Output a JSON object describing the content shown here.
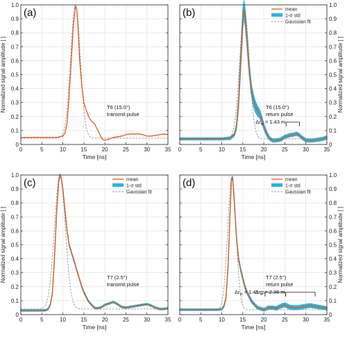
{
  "colors": {
    "mean": "#e05a1e",
    "std": "#2bb5e0",
    "gauss": "#8c8c8c",
    "grid": "#dcdcdc",
    "axis": "#222222"
  },
  "chart_data": [
    {
      "panel": "(a)",
      "type": "line",
      "side": "left",
      "annotation": [
        "T6 (15.0°)",
        "transmit pulse"
      ],
      "xlabel": "Time [ns]",
      "ylabel": "Normalized signal amplitude [ ]",
      "xlim": [
        0,
        35
      ],
      "ylim": [
        0,
        1
      ],
      "xticks": [
        "0",
        "5",
        "10",
        "15",
        "20",
        "25",
        "30",
        "35"
      ],
      "yticks": [
        "0",
        "0.1",
        "0.2",
        "0.3",
        "0.4",
        "0.5",
        "0.6",
        "0.7",
        "0.8",
        "0.9",
        "1.0"
      ],
      "grid": true,
      "legend": null,
      "measurements": [],
      "series": [
        {
          "name": "mean",
          "kind": "mean",
          "x": [
            0,
            5,
            8,
            9,
            10,
            10.5,
            11,
            11.5,
            12,
            12.5,
            13,
            13.3,
            13.6,
            14,
            14.5,
            15,
            15.5,
            16,
            16.5,
            17,
            17.5,
            18,
            18.5,
            19,
            19.5,
            20,
            20.5,
            21,
            22,
            23,
            24,
            25,
            26,
            27,
            28,
            29,
            30,
            31,
            32,
            33,
            34,
            35
          ],
          "y": [
            0.05,
            0.05,
            0.05,
            0.053,
            0.06,
            0.08,
            0.15,
            0.35,
            0.6,
            0.85,
            0.99,
            0.97,
            0.85,
            0.6,
            0.42,
            0.3,
            0.25,
            0.21,
            0.18,
            0.16,
            0.15,
            0.12,
            0.09,
            0.055,
            0.035,
            0.03,
            0.033,
            0.04,
            0.05,
            0.055,
            0.06,
            0.07,
            0.075,
            0.075,
            0.075,
            0.07,
            0.06,
            0.06,
            0.065,
            0.07,
            0.075,
            0.07
          ]
        },
        {
          "name": "1-σ std",
          "kind": "std",
          "x": [],
          "y": []
        },
        {
          "name": "Gaussian fit",
          "kind": "gauss",
          "center": 13,
          "sigma": 1.15,
          "baseline": 0.045,
          "amplitude": 0.955
        }
      ]
    },
    {
      "panel": "(b)",
      "type": "line",
      "side": "right",
      "annotation": [
        "T6 (15.0°)",
        "return pulse"
      ],
      "xlabel": "Time [ns]",
      "ylabel": "Normalized signal amplitude [ ]",
      "xlim": [
        0,
        35
      ],
      "ylim": [
        0,
        1
      ],
      "xticks": [
        "0",
        "5",
        "10",
        "15",
        "20",
        "25",
        "30",
        "35"
      ],
      "yticks": [
        "0",
        "0.1",
        "0.2",
        "0.3",
        "0.4",
        "0.5",
        "0.6",
        "0.7",
        "0.8",
        "0.9",
        "1.0"
      ],
      "grid": true,
      "legend": {
        "placement": "top-right",
        "items": [
          "mean",
          "1-σ std",
          "Gaussian fit"
        ]
      },
      "measurements": [
        {
          "prefix": "Δr",
          "sub": "w",
          "text": " = 1.43 m",
          "x1": 25.3,
          "x2": 28.5,
          "y": 0.1
        }
      ],
      "series": [
        {
          "name": "mean",
          "kind": "mean",
          "x": [
            0,
            5,
            10,
            12,
            13,
            13.5,
            14,
            14.5,
            15,
            15.3,
            15.6,
            16,
            16.5,
            17,
            17.5,
            18,
            18.5,
            19,
            19.5,
            20,
            20.5,
            21,
            21.5,
            22,
            22.5,
            23,
            24,
            25,
            26,
            27,
            27.5,
            28,
            28.5,
            29,
            30,
            31,
            32,
            33,
            34,
            35
          ],
          "y": [
            0.04,
            0.04,
            0.04,
            0.045,
            0.07,
            0.13,
            0.3,
            0.6,
            0.9,
            0.97,
            0.9,
            0.75,
            0.55,
            0.4,
            0.32,
            0.27,
            0.24,
            0.22,
            0.18,
            0.13,
            0.09,
            0.06,
            0.04,
            0.03,
            0.028,
            0.03,
            0.035,
            0.055,
            0.065,
            0.07,
            0.075,
            0.075,
            0.065,
            0.05,
            0.03,
            0.028,
            0.03,
            0.035,
            0.04,
            0.05
          ]
        },
        {
          "name": "1-σ std",
          "kind": "std",
          "x": [
            0,
            5,
            10,
            12,
            13,
            13.5,
            14,
            14.5,
            15,
            15.3,
            15.6,
            16,
            16.5,
            17,
            17.5,
            18,
            18.5,
            19,
            19.5,
            20,
            20.5,
            21,
            21.5,
            22,
            22.5,
            23,
            24,
            25,
            26,
            27,
            27.5,
            28,
            28.5,
            29,
            30,
            31,
            32,
            33,
            34,
            35
          ],
          "y": [
            0.008,
            0.008,
            0.008,
            0.01,
            0.01,
            0.02,
            0.04,
            0.06,
            0.07,
            0.06,
            0.06,
            0.05,
            0.045,
            0.04,
            0.04,
            0.04,
            0.035,
            0.03,
            0.025,
            0.02,
            0.018,
            0.015,
            0.012,
            0.012,
            0.012,
            0.012,
            0.012,
            0.012,
            0.012,
            0.012,
            0.012,
            0.012,
            0.012,
            0.012,
            0.012,
            0.012,
            0.012,
            0.012,
            0.012,
            0.012
          ]
        },
        {
          "name": "Gaussian fit",
          "kind": "gauss",
          "center": 15.4,
          "sigma": 1.15,
          "baseline": 0.04,
          "amplitude": 0.92
        }
      ]
    },
    {
      "panel": "(c)",
      "type": "line",
      "side": "left",
      "annotation": [
        "T7 (2.5°)",
        "transmit pulse"
      ],
      "xlabel": "Time [ns]",
      "ylabel": "Normalized signal amplitude [ ]",
      "xlim": [
        0,
        35
      ],
      "ylim": [
        0,
        1
      ],
      "xticks": [
        "0",
        "5",
        "10",
        "15",
        "20",
        "25",
        "30",
        "35"
      ],
      "yticks": [
        "0",
        "0.1",
        "0.2",
        "0.3",
        "0.4",
        "0.5",
        "0.6",
        "0.7",
        "0.8",
        "0.9",
        "1.0"
      ],
      "grid": true,
      "legend": {
        "placement": "top-right",
        "items": [
          "mean",
          "1-σ std",
          "Gaussian fit"
        ]
      },
      "measurements": [],
      "series": [
        {
          "name": "mean",
          "kind": "mean",
          "x": [
            0,
            5,
            6,
            6.5,
            7,
            7.5,
            8,
            8.5,
            9,
            9.3,
            9.6,
            10,
            10.5,
            11,
            11.5,
            12,
            12.5,
            13,
            13.5,
            14,
            14.5,
            15,
            15.5,
            16,
            16.5,
            17,
            17.5,
            18,
            19,
            20,
            21,
            22,
            23,
            24,
            25,
            26,
            27,
            28,
            29,
            30,
            31,
            32,
            33,
            34,
            35
          ],
          "y": [
            0.03,
            0.03,
            0.032,
            0.04,
            0.07,
            0.15,
            0.4,
            0.72,
            0.95,
            1.0,
            0.98,
            0.9,
            0.75,
            0.6,
            0.5,
            0.45,
            0.4,
            0.35,
            0.3,
            0.25,
            0.2,
            0.16,
            0.13,
            0.1,
            0.08,
            0.065,
            0.05,
            0.045,
            0.05,
            0.07,
            0.08,
            0.09,
            0.075,
            0.055,
            0.05,
            0.055,
            0.06,
            0.065,
            0.07,
            0.075,
            0.065,
            0.05,
            0.04,
            0.04,
            0.045
          ]
        },
        {
          "name": "1-σ std",
          "kind": "std",
          "x": [
            0,
            35
          ],
          "y": [
            0.006,
            0.006
          ]
        },
        {
          "name": "Gaussian fit",
          "kind": "gauss",
          "center": 9.3,
          "sigma": 1.3,
          "baseline": 0.04,
          "amplitude": 0.96
        }
      ]
    },
    {
      "panel": "(d)",
      "type": "line",
      "side": "right",
      "annotation": [
        "T7 (2.5°)",
        "return pulse"
      ],
      "xlabel": "Time [ns]",
      "ylabel": "Normalized signal amplitude [ ]",
      "xlim": [
        0,
        35
      ],
      "ylim": [
        0,
        1
      ],
      "xticks": [
        "0",
        "5",
        "10",
        "15",
        "20",
        "25",
        "30",
        "35"
      ],
      "yticks": [
        "0",
        "0.1",
        "0.2",
        "0.3",
        "0.4",
        "0.5",
        "0.6",
        "0.7",
        "0.8",
        "0.9",
        "1.0"
      ],
      "grid": true,
      "legend": {
        "placement": "top-right",
        "items": [
          "mean",
          "1-σ std",
          "Gaussian fit"
        ]
      },
      "measurements": [
        {
          "prefix": "Δr",
          "sub": "w",
          "text": " = 1.41 m",
          "x1": 20.3,
          "x2": 25.2,
          "y": 0.1
        },
        {
          "prefix": "Δr",
          "sub": "w",
          "text": " = 2.36 m",
          "x1": 25.2,
          "x2": 32.2,
          "y": 0.1
        }
      ],
      "series": [
        {
          "name": "mean",
          "kind": "mean",
          "x": [
            0,
            5,
            9,
            10,
            10.5,
            11,
            11.5,
            12,
            12.3,
            12.6,
            13,
            13.5,
            14,
            14.5,
            15,
            15.5,
            16,
            16.5,
            17,
            17.5,
            18,
            18.5,
            19,
            19.5,
            20,
            20.5,
            21,
            22,
            23,
            24,
            25,
            26,
            27,
            28,
            29,
            30,
            31,
            32,
            33,
            34,
            35
          ],
          "y": [
            0.035,
            0.035,
            0.035,
            0.04,
            0.06,
            0.12,
            0.35,
            0.75,
            0.97,
            0.98,
            0.8,
            0.55,
            0.4,
            0.32,
            0.26,
            0.2,
            0.16,
            0.13,
            0.1,
            0.08,
            0.065,
            0.05,
            0.045,
            0.04,
            0.035,
            0.04,
            0.05,
            0.05,
            0.045,
            0.06,
            0.07,
            0.055,
            0.05,
            0.05,
            0.055,
            0.06,
            0.065,
            0.06,
            0.055,
            0.05,
            0.045
          ]
        },
        {
          "name": "1-σ std",
          "kind": "std",
          "x": [
            0,
            10,
            12,
            13,
            15,
            20,
            25,
            30,
            35
          ],
          "y": [
            0.006,
            0.006,
            0.01,
            0.012,
            0.012,
            0.01,
            0.015,
            0.015,
            0.012
          ]
        },
        {
          "name": "Gaussian fit",
          "kind": "gauss",
          "center": 12.4,
          "sigma": 1.0,
          "baseline": 0.035,
          "amplitude": 0.95
        }
      ]
    }
  ]
}
